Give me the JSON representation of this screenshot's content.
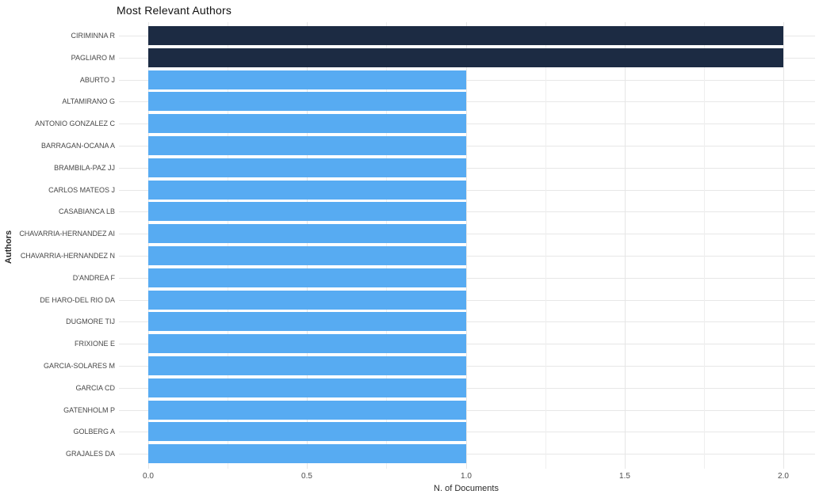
{
  "chart_data": {
    "type": "bar",
    "orientation": "horizontal",
    "title": "Most Relevant Authors",
    "xlabel": "N. of Documents",
    "ylabel": "Authors",
    "xlim": [
      0,
      2.0
    ],
    "xticks": [
      0.0,
      0.5,
      1.0,
      1.5,
      2.0
    ],
    "xtick_labels": [
      "0.0",
      "0.5",
      "1.0",
      "1.5",
      "2.0"
    ],
    "minor_grid_step": 0.25,
    "grid": true,
    "legend": "none",
    "colors": {
      "highlight_bar": "#1c2b43",
      "base_bar": "#57abf2",
      "background": "#ffffff",
      "gridline": "#e7e7e7"
    },
    "authors": [
      {
        "label": "CIRIMINNA R",
        "value": 2,
        "highlighted": true
      },
      {
        "label": "PAGLIARO M",
        "value": 2,
        "highlighted": true
      },
      {
        "label": "ABURTO J",
        "value": 1,
        "highlighted": false
      },
      {
        "label": "ALTAMIRANO G",
        "value": 1,
        "highlighted": false
      },
      {
        "label": "ANTONIO GONZALEZ C",
        "value": 1,
        "highlighted": false
      },
      {
        "label": "BARRAGAN-OCANA A",
        "value": 1,
        "highlighted": false
      },
      {
        "label": "BRAMBILA-PAZ JJ",
        "value": 1,
        "highlighted": false
      },
      {
        "label": "CARLOS MATEOS J",
        "value": 1,
        "highlighted": false
      },
      {
        "label": "CASABIANCA LB",
        "value": 1,
        "highlighted": false
      },
      {
        "label": "CHAVARRIA-HERNANDEZ AI",
        "value": 1,
        "highlighted": false
      },
      {
        "label": "CHAVARRIA-HERNANDEZ N",
        "value": 1,
        "highlighted": false
      },
      {
        "label": "D'ANDREA F",
        "value": 1,
        "highlighted": false
      },
      {
        "label": "DE HARO-DEL RIO DA",
        "value": 1,
        "highlighted": false
      },
      {
        "label": "DUGMORE TIJ",
        "value": 1,
        "highlighted": false
      },
      {
        "label": "FRIXIONE E",
        "value": 1,
        "highlighted": false
      },
      {
        "label": "GARCIA-SOLARES M",
        "value": 1,
        "highlighted": false
      },
      {
        "label": "GARCIA CD",
        "value": 1,
        "highlighted": false
      },
      {
        "label": "GATENHOLM P",
        "value": 1,
        "highlighted": false
      },
      {
        "label": "GOLBERG A",
        "value": 1,
        "highlighted": false
      },
      {
        "label": "GRAJALES DA",
        "value": 1,
        "highlighted": false
      }
    ]
  }
}
